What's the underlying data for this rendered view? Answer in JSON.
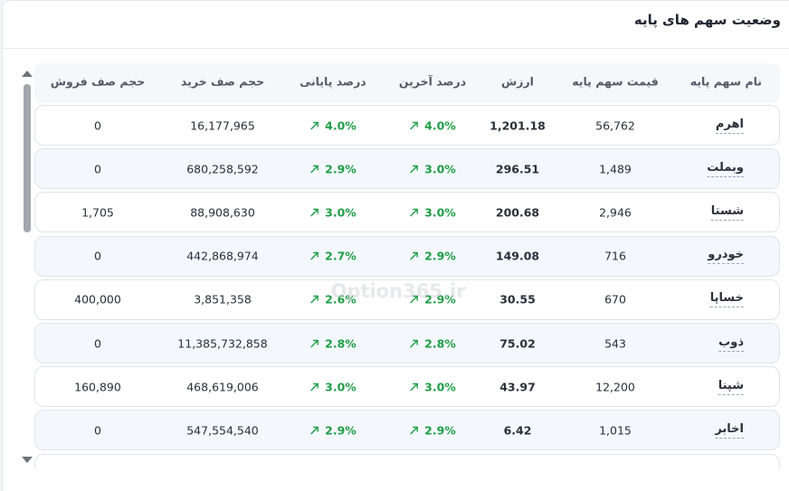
{
  "title": "وضعیت سهم های پایه",
  "watermark": "Option365.ir",
  "table": {
    "headers": [
      "نام سهم پایه",
      "قیمت سهم پایه",
      "ارزش",
      "درصد آخرین",
      "درصد پایانی",
      "حجم صف خرید",
      "حجم صف فروش"
    ],
    "rows": [
      [
        "اهرم",
        "56,762",
        "1,201.18",
        "4.0%",
        "4.0%",
        "16,177,965",
        "0"
      ],
      [
        "وبملت",
        "1,489",
        "296.51",
        "3.0%",
        "2.9%",
        "680,258,592",
        "0"
      ],
      [
        "شستا",
        "2,946",
        "200.68",
        "3.0%",
        "3.0%",
        "88,908,630",
        "1,705"
      ],
      [
        "خودرو",
        "716",
        "149.08",
        "2.9%",
        "2.7%",
        "442,868,974",
        "0"
      ],
      [
        "خساپا",
        "670",
        "30.55",
        "2.9%",
        "2.6%",
        "3,851,358",
        "400,000"
      ],
      [
        "ذوب",
        "543",
        "75.02",
        "2.8%",
        "2.8%",
        "11,385,732,858",
        "0"
      ],
      [
        "شپنا",
        "12,200",
        "43.97",
        "3.0%",
        "3.0%",
        "468,619,006",
        "160,890"
      ],
      [
        "اخابر",
        "1,015",
        "6.42",
        "2.9%",
        "2.9%",
        "547,554,540",
        "0"
      ]
    ]
  }
}
